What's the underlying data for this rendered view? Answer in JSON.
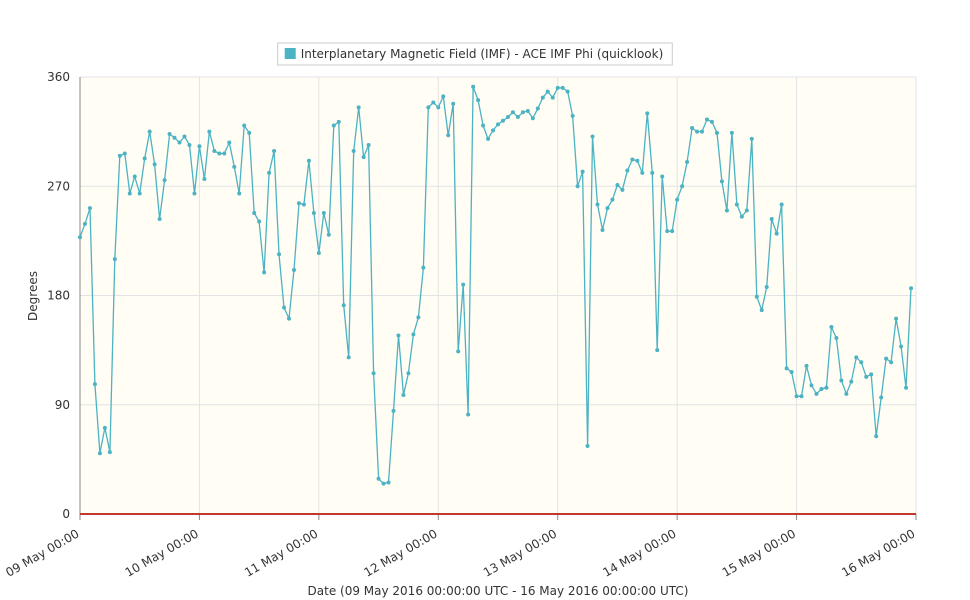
{
  "chart_data": {
    "type": "line",
    "xlabel": "Date (09 May 2016 00:00:00 UTC - 16 May 2016 00:00:00 UTC)",
    "ylabel": "Degrees",
    "x": [
      0,
      1,
      2,
      3,
      4,
      5,
      6,
      7,
      8,
      9,
      10,
      11,
      12,
      13,
      14,
      15,
      16,
      17,
      18,
      19,
      20,
      21,
      22,
      23,
      24,
      25,
      26,
      27,
      28,
      29,
      30,
      31,
      32,
      33,
      34,
      35,
      36,
      37,
      38,
      39,
      40,
      41,
      42,
      43,
      44,
      45,
      46,
      47,
      48,
      49,
      50,
      51,
      52,
      53,
      54,
      55,
      56,
      57,
      58,
      59,
      60,
      61,
      62,
      63,
      64,
      65,
      66,
      67,
      68,
      69,
      70,
      71,
      72,
      73,
      74,
      75,
      76,
      77,
      78,
      79,
      80,
      81,
      82,
      83,
      84,
      85,
      86,
      87,
      88,
      89,
      90,
      91,
      92,
      93,
      94,
      95,
      96,
      97,
      98,
      99,
      100,
      101,
      102,
      103,
      104,
      105,
      106,
      107,
      108,
      109,
      110,
      111,
      112,
      113,
      114,
      115,
      116,
      117,
      118,
      119,
      120,
      121,
      122,
      123,
      124,
      125,
      126,
      127,
      128,
      129,
      130,
      131,
      132,
      133,
      134,
      135,
      136,
      137,
      138,
      139,
      140,
      141,
      142,
      143,
      144,
      145,
      146,
      147,
      148,
      149,
      150,
      151,
      152,
      153,
      154,
      155,
      156,
      157,
      158,
      159,
      160,
      161,
      162,
      163,
      164,
      165,
      166,
      167
    ],
    "series": [
      {
        "name": "Interplanetary Magnetic Field (IMF) - ACE IMF Phi (quicklook)",
        "color": "#4bb3c3",
        "values": [
          228,
          239,
          252,
          107,
          50,
          71,
          51,
          210,
          295,
          297,
          264,
          278,
          264,
          293,
          315,
          288,
          243,
          275,
          313,
          310,
          306,
          311,
          304,
          264,
          303,
          276,
          315,
          299,
          297,
          297,
          306,
          286,
          264,
          320,
          314,
          248,
          241,
          199,
          281,
          299,
          214,
          170,
          161,
          201,
          256,
          255,
          291,
          248,
          215,
          248,
          230,
          320,
          323,
          172,
          129,
          299,
          335,
          294,
          304,
          116,
          29,
          25,
          26,
          85,
          147,
          98,
          116,
          148,
          162,
          203,
          335,
          339,
          335,
          344,
          312,
          338,
          134,
          189,
          82,
          352,
          341,
          320,
          309,
          316,
          321,
          324,
          327,
          331,
          327,
          331,
          332,
          326,
          334,
          343,
          348,
          343,
          351,
          351,
          348,
          328,
          270,
          282,
          56,
          311,
          255,
          234,
          252,
          259,
          271,
          267,
          283,
          292,
          291,
          281,
          330,
          281,
          135,
          278,
          233,
          233,
          259,
          270,
          290,
          318,
          315,
          315,
          325,
          323,
          314,
          274,
          250,
          314,
          255,
          245,
          250,
          309,
          179,
          168,
          187,
          243,
          231,
          255,
          120,
          117,
          97,
          97,
          122,
          106,
          99,
          103,
          104,
          154,
          145,
          110,
          99,
          109,
          129,
          125,
          113,
          115,
          64,
          96,
          128,
          125,
          161,
          138,
          104,
          186
        ]
      }
    ],
    "xlim": [
      0,
      168
    ],
    "xticks": [
      {
        "value": 0,
        "label": "09 May 00:00"
      },
      {
        "value": 24,
        "label": "10 May 00:00"
      },
      {
        "value": 48,
        "label": "11 May 00:00"
      },
      {
        "value": 72,
        "label": "12 May 00:00"
      },
      {
        "value": 96,
        "label": "13 May 00:00"
      },
      {
        "value": 120,
        "label": "14 May 00:00"
      },
      {
        "value": 144,
        "label": "15 May 00:00"
      },
      {
        "value": 168,
        "label": "16 May 00:00"
      }
    ],
    "ylim": [
      0,
      360
    ],
    "yticks": [
      0,
      90,
      180,
      270,
      360
    ],
    "grid": true,
    "legend": "top"
  }
}
